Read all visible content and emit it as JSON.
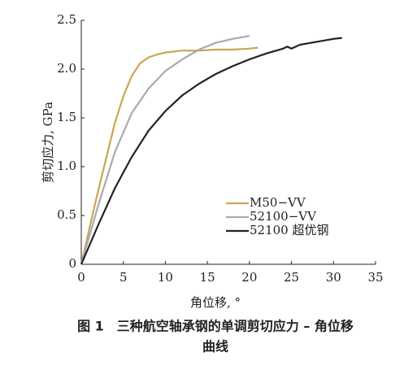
{
  "chart_data": {
    "type": "line",
    "caption": [
      "图 1　三种航空轴承钢的单调剪切应力 – 角位移",
      "曲线"
    ],
    "xlabel": "角位移, °",
    "ylabel": "剪切应力, GPa",
    "xlim": [
      0,
      35
    ],
    "xticks": [
      0,
      5,
      10,
      15,
      20,
      25,
      30,
      35
    ],
    "ylim": [
      0,
      2.5
    ],
    "yticks": [
      0,
      0.5,
      {
        "value": 1,
        "label": "1.0"
      },
      1.5,
      {
        "value": 2,
        "label": "2.0"
      },
      2.5
    ],
    "legend": "center-right",
    "series": [
      {
        "name": "M50−VV",
        "color": "#c9a651",
        "x": [
          0,
          1,
          2,
          3,
          4,
          5,
          6,
          7,
          8,
          9,
          10,
          12,
          14,
          16,
          18,
          20,
          21
        ],
        "values": [
          0,
          0.38,
          0.75,
          1.1,
          1.45,
          1.72,
          1.93,
          2.06,
          2.12,
          2.15,
          2.17,
          2.19,
          2.19,
          2.2,
          2.2,
          2.21,
          2.22
        ]
      },
      {
        "name": "52100−VV",
        "color": "#a9a9b1",
        "x": [
          0,
          2,
          4,
          6,
          8,
          10,
          12,
          14,
          16,
          18,
          20
        ],
        "values": [
          0,
          0.6,
          1.15,
          1.55,
          1.8,
          1.98,
          2.1,
          2.2,
          2.27,
          2.31,
          2.34
        ]
      },
      {
        "name": "52100 超优钢",
        "color": "#222222",
        "x": [
          0,
          2,
          4,
          6,
          8,
          10,
          12,
          14,
          16,
          18,
          20,
          22,
          24,
          24.5,
          25,
          26,
          28,
          30,
          31
        ],
        "values": [
          0,
          0.4,
          0.78,
          1.1,
          1.37,
          1.57,
          1.73,
          1.85,
          1.95,
          2.03,
          2.1,
          2.16,
          2.21,
          2.23,
          2.21,
          2.25,
          2.28,
          2.31,
          2.32
        ]
      }
    ]
  }
}
